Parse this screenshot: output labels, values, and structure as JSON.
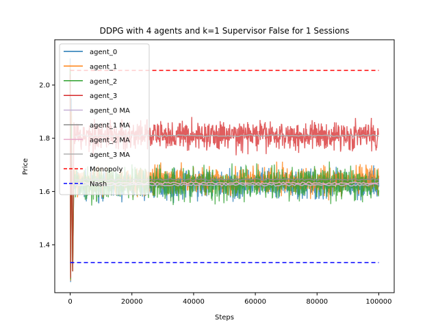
{
  "chart_data": {
    "type": "line",
    "title": "DDPG with 4 agents and k=1 Supervisor False for 1 Sessions",
    "xlabel": "Steps",
    "ylabel": "Price",
    "xlim": [
      -5000,
      105000
    ],
    "ylim": [
      1.22,
      2.17
    ],
    "x_ticks": [
      0,
      20000,
      40000,
      60000,
      80000,
      100000
    ],
    "x_tick_labels": [
      "0",
      "20000",
      "40000",
      "60000",
      "80000",
      "100000"
    ],
    "y_ticks": [
      1.4,
      1.6,
      1.8,
      2.0
    ],
    "y_tick_labels": [
      "1.4",
      "1.6",
      "1.8",
      "2.0"
    ],
    "grid": false,
    "legend_position": "top-left",
    "series": [
      {
        "name": "agent_0",
        "color": "#1f77b4",
        "kind": "noisy",
        "mean": 1.625,
        "spread": 0.05,
        "opacity": 0.75
      },
      {
        "name": "agent_1",
        "color": "#ff7f0e",
        "kind": "noisy",
        "mean": 1.64,
        "spread": 0.05,
        "opacity": 0.75
      },
      {
        "name": "agent_2",
        "color": "#2ca02c",
        "kind": "noisy",
        "mean": 1.63,
        "spread": 0.06,
        "opacity": 0.75
      },
      {
        "name": "agent_3",
        "color": "#d62728",
        "kind": "noisy",
        "mean": 1.81,
        "spread": 0.05,
        "opacity": 0.75
      },
      {
        "name": "agent_0 MA",
        "color": "#c5b0d5",
        "kind": "ma",
        "mean": 1.625,
        "opacity": 1
      },
      {
        "name": "agent_1 MA",
        "color": "#8c8c8c",
        "kind": "ma",
        "mean": 1.645,
        "opacity": 1
      },
      {
        "name": "agent_2 MA",
        "color": "#e7a8c8",
        "kind": "ma",
        "mean": 1.632,
        "opacity": 1
      },
      {
        "name": "agent_3 MA",
        "color": "#b0b0b0",
        "kind": "ma",
        "mean": 1.81,
        "opacity": 1
      },
      {
        "name": "Monopoly",
        "color": "#ff0000",
        "kind": "hline",
        "value": 2.055,
        "dashed": true,
        "x": [
          0,
          100000
        ]
      },
      {
        "name": "Nash",
        "color": "#0000ff",
        "kind": "hline",
        "value": 1.333,
        "dashed": true,
        "x": [
          0,
          100000
        ]
      }
    ]
  }
}
